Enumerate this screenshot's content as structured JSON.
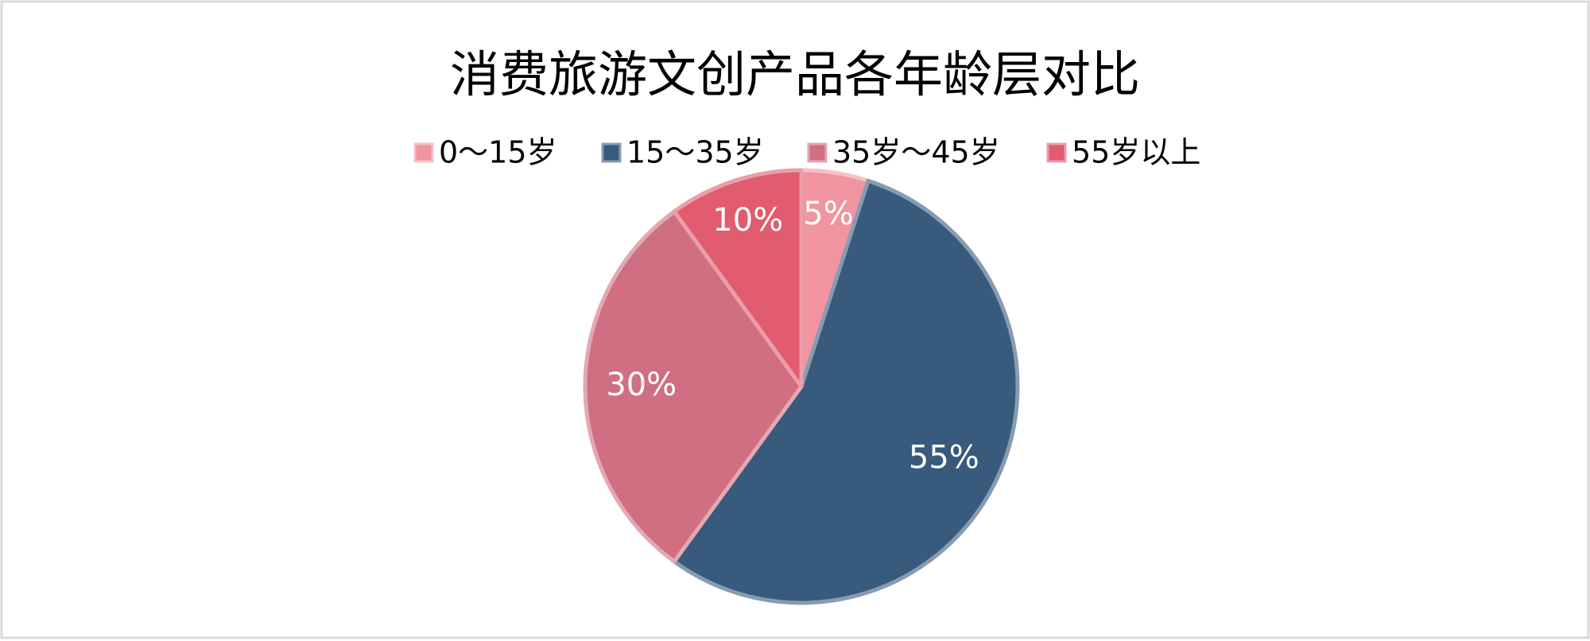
{
  "chart_data": {
    "type": "pie",
    "title": "消费旅游文创产品各年龄层对比",
    "categories": [
      "0～15岁",
      "15～35岁",
      "35岁～45岁",
      "55岁以上"
    ],
    "values": [
      5,
      55,
      30,
      10
    ],
    "value_labels": [
      "5%",
      "55%",
      "30%",
      "10%"
    ],
    "colors": [
      "#f0949f",
      "#375a7d",
      "#d06e82",
      "#e05c6e"
    ],
    "legend": "top"
  }
}
